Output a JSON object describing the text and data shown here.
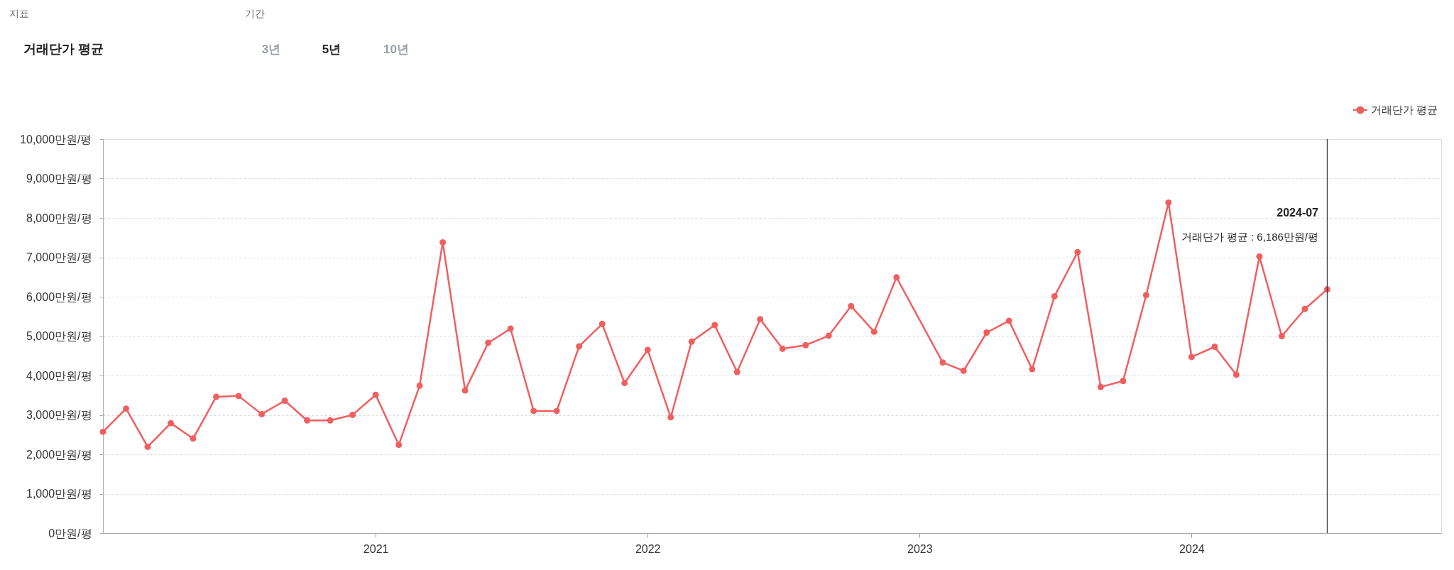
{
  "chart_data": {
    "type": "line",
    "x": [
      "2020-01",
      "2020-02",
      "2020-03",
      "2020-04",
      "2020-05",
      "2020-06",
      "2020-07",
      "2020-08",
      "2020-09",
      "2020-10",
      "2020-11",
      "2020-12",
      "2021-01",
      "2021-02",
      "2021-03",
      "2021-04",
      "2021-05",
      "2021-06",
      "2021-07",
      "2021-08",
      "2021-09",
      "2021-10",
      "2021-11",
      "2021-12",
      "2022-01",
      "2022-02",
      "2022-03",
      "2022-04",
      "2022-05",
      "2022-06",
      "2022-07",
      "2022-08",
      "2022-09",
      "2022-10",
      "2022-11",
      "2022-12",
      "2023-02",
      "2023-03",
      "2023-04",
      "2023-05",
      "2023-06",
      "2023-07",
      "2023-08",
      "2023-09",
      "2023-10",
      "2023-11",
      "2023-12",
      "2024-01",
      "2024-02",
      "2024-03",
      "2024-04",
      "2024-05",
      "2024-06",
      "2024-07"
    ],
    "series": [
      {
        "name": "거래단가 평균",
        "color": "#f05f5f",
        "values": [
          2570,
          3160,
          2190,
          2790,
          2400,
          3460,
          3480,
          3020,
          3360,
          2860,
          2860,
          3000,
          3510,
          2240,
          3740,
          7380,
          3620,
          4830,
          5190,
          3100,
          3100,
          4740,
          5310,
          3810,
          4650,
          2940,
          4860,
          5280,
          4090,
          5430,
          4680,
          4770,
          5010,
          5760,
          5110,
          6490,
          4330,
          4120,
          5090,
          5390,
          4160,
          6010,
          7130,
          3710,
          3860,
          6040,
          8390,
          4470,
          4730,
          4020,
          7020,
          5000,
          5690,
          6186
        ]
      }
    ],
    "xlim": [
      "2020-01",
      "2024-12"
    ],
    "xticks": [
      "2021",
      "2022",
      "2023",
      "2024"
    ],
    "ylim": [
      0,
      10000
    ],
    "yticks": [
      {
        "value": 0,
        "label": "0만원/평"
      },
      {
        "value": 1000,
        "label": "1,000만원/평"
      },
      {
        "value": 2000,
        "label": "2,000만원/평"
      },
      {
        "value": 3000,
        "label": "3,000만원/평"
      },
      {
        "value": 4000,
        "label": "4,000만원/평"
      },
      {
        "value": 5000,
        "label": "5,000만원/평"
      },
      {
        "value": 6000,
        "label": "6,000만원/평"
      },
      {
        "value": 7000,
        "label": "7,000만원/평"
      },
      {
        "value": 8000,
        "label": "8,000만원/평"
      },
      {
        "value": 9000,
        "label": "9,000만원/평"
      },
      {
        "value": 10000,
        "label": "10,000만원/평"
      }
    ],
    "grid": "y",
    "legend": "top right",
    "marker": "circle",
    "line_style": "solid",
    "ref_lines": [
      {
        "axis": "x",
        "value": "2024-07",
        "color": "#333333"
      }
    ],
    "annotations": [
      "지표",
      "거래단가 평균",
      "기간",
      "3년",
      "5년",
      "10년",
      "2024-07",
      "거래단가 평균 : 6,186만원/평"
    ]
  }
}
